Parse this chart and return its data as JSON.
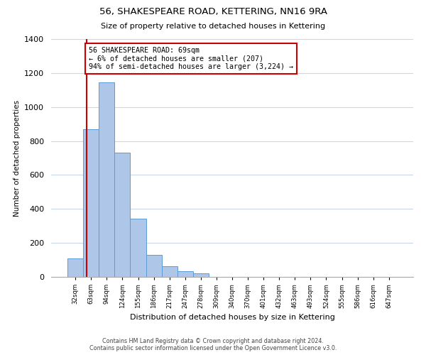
{
  "title": "56, SHAKESPEARE ROAD, KETTERING, NN16 9RA",
  "subtitle": "Size of property relative to detached houses in Kettering",
  "xlabel": "Distribution of detached houses by size in Kettering",
  "ylabel": "Number of detached properties",
  "bin_labels": [
    "32sqm",
    "63sqm",
    "94sqm",
    "124sqm",
    "155sqm",
    "186sqm",
    "217sqm",
    "247sqm",
    "278sqm",
    "309sqm",
    "340sqm",
    "370sqm",
    "401sqm",
    "432sqm",
    "463sqm",
    "493sqm",
    "524sqm",
    "555sqm",
    "586sqm",
    "616sqm",
    "647sqm"
  ],
  "bar_heights": [
    107,
    868,
    1143,
    733,
    341,
    130,
    62,
    33,
    20,
    0,
    0,
    0,
    0,
    0,
    0,
    0,
    0,
    0,
    0,
    0,
    0
  ],
  "bar_color": "#aec6e8",
  "bar_edge_color": "#5b9bd5",
  "ylim": [
    0,
    1400
  ],
  "yticks": [
    0,
    200,
    400,
    600,
    800,
    1000,
    1200,
    1400
  ],
  "annotation_text": "56 SHAKESPEARE ROAD: 69sqm\n← 6% of detached houses are smaller (207)\n94% of semi-detached houses are larger (3,224) →",
  "annotation_box_color": "#ffffff",
  "annotation_box_edge_color": "#cc0000",
  "red_line_color": "#cc0000",
  "footer_line1": "Contains HM Land Registry data © Crown copyright and database right 2024.",
  "footer_line2": "Contains public sector information licensed under the Open Government Licence v3.0.",
  "background_color": "#ffffff",
  "grid_color": "#c8d8ea"
}
